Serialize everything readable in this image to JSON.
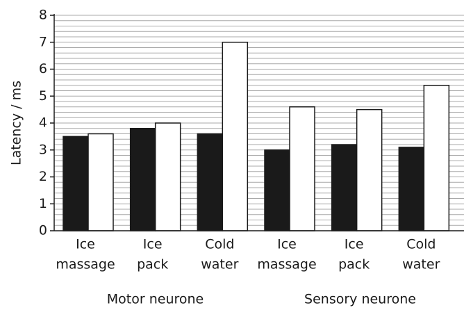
{
  "chart_data": {
    "type": "bar",
    "y_label": "Latency / ms",
    "categories": [
      [
        "Ice",
        "massage"
      ],
      [
        "Ice",
        "pack"
      ],
      [
        "Cold",
        "water"
      ],
      [
        "Ice",
        "massage"
      ],
      [
        "Ice",
        "pack"
      ],
      [
        "Cold",
        "water"
      ]
    ],
    "group_labels": [
      "Motor neurone",
      "Sensory neurone"
    ],
    "series": [
      {
        "color": "#1a1a1a",
        "values": [
          3.5,
          3.8,
          3.6,
          3.0,
          3.2,
          3.1
        ]
      },
      {
        "color": "#ffffff",
        "values": [
          3.6,
          4.0,
          7.0,
          4.6,
          4.5,
          5.4
        ]
      }
    ],
    "ylim": [
      0,
      8
    ],
    "yticks": [
      0,
      1,
      2,
      3,
      4,
      5,
      6,
      7,
      8
    ],
    "minor_grid_step": 0.2,
    "grid": true
  }
}
